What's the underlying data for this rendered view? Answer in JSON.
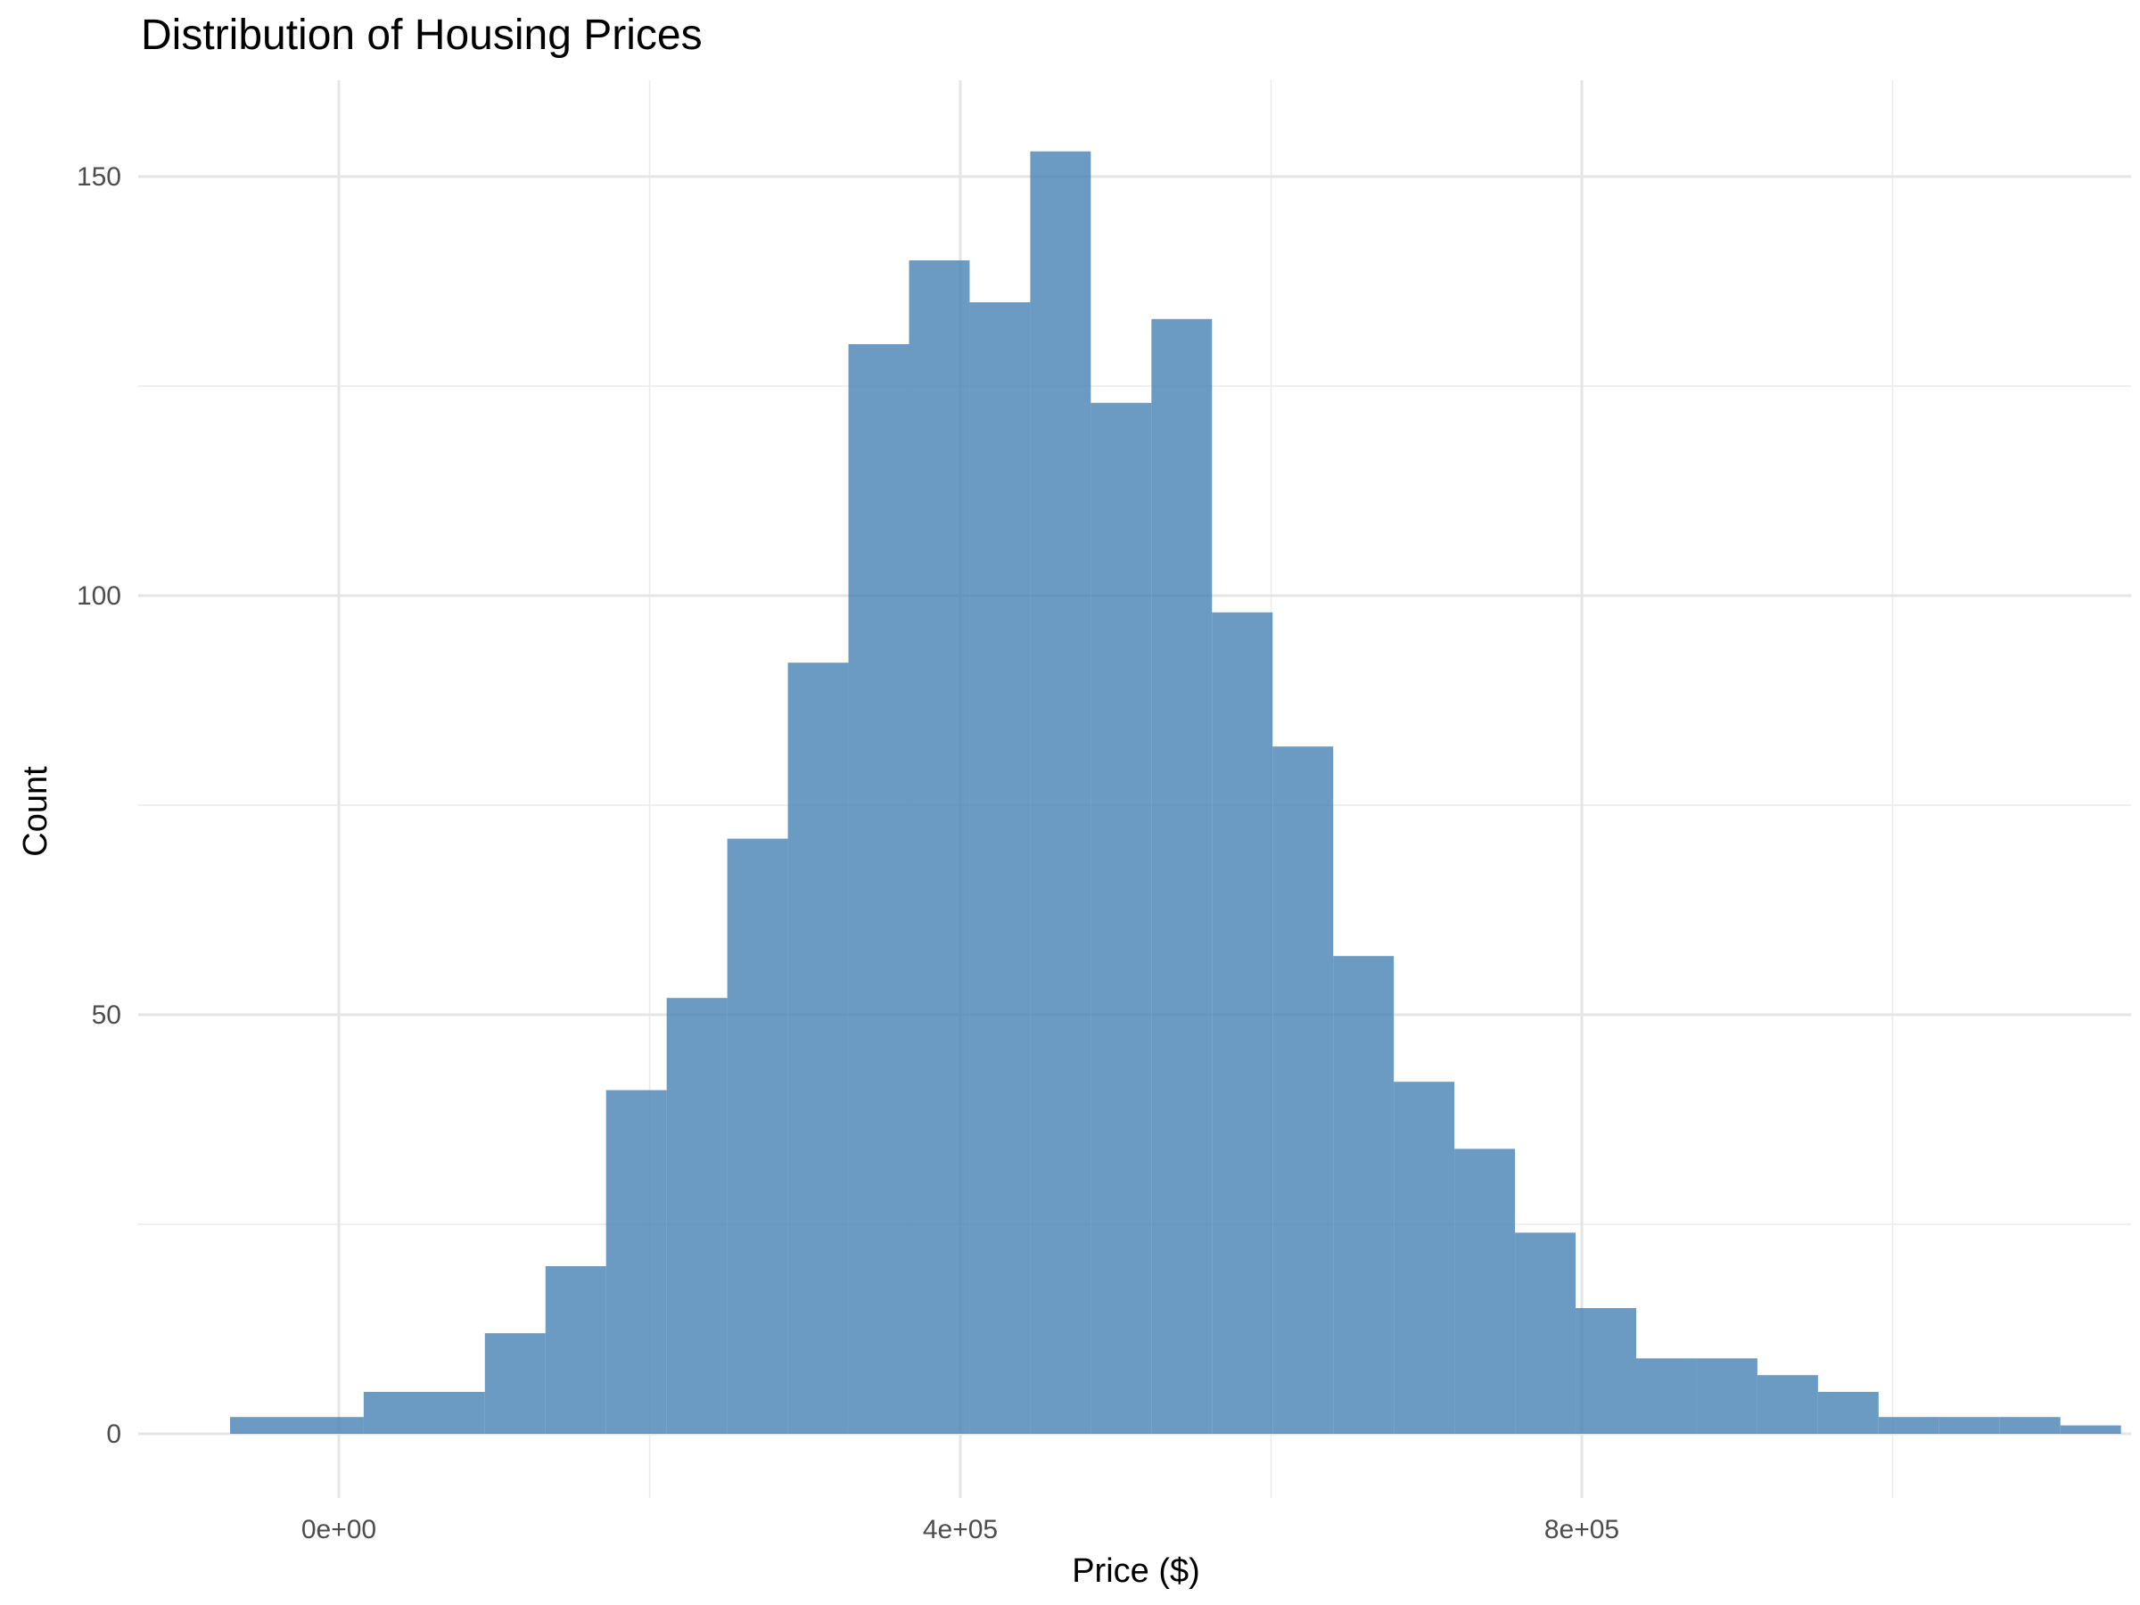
{
  "chart_data": {
    "type": "bar",
    "title": "Distribution of Housing Prices",
    "xlabel": "Price ($)",
    "ylabel": "Count",
    "bar_color": "#4682B4",
    "bar_opacity": 0.8,
    "grid": true,
    "xlim": [
      -90000,
      1150000
    ],
    "ylim": [
      -4,
      160
    ],
    "x_ticks": [
      {
        "value": 0,
        "label": "0e+00"
      },
      {
        "value": 400000,
        "label": "4e+05"
      },
      {
        "value": 800000,
        "label": "8e+05"
      }
    ],
    "x_minor": [
      200000,
      600000,
      1000000
    ],
    "y_ticks": [
      {
        "value": 0,
        "label": "0"
      },
      {
        "value": 50,
        "label": "50"
      },
      {
        "value": 100,
        "label": "100"
      },
      {
        "value": 150,
        "label": "150"
      }
    ],
    "y_minor": [
      25,
      75,
      125
    ],
    "bins": [
      {
        "x0": -70000,
        "x1": 0,
        "count": 2
      },
      {
        "x0": 0,
        "x1": 16000,
        "count": 2
      },
      {
        "x0": 16000,
        "x1": 94000,
        "count": 5
      },
      {
        "x0": 94000,
        "x1": 133000,
        "count": 12
      },
      {
        "x0": 133000,
        "x1": 172000,
        "count": 20
      },
      {
        "x0": 172000,
        "x1": 211000,
        "count": 41
      },
      {
        "x0": 211000,
        "x1": 250000,
        "count": 52
      },
      {
        "x0": 250000,
        "x1": 289000,
        "count": 71
      },
      {
        "x0": 289000,
        "x1": 328000,
        "count": 92
      },
      {
        "x0": 328000,
        "x1": 367000,
        "count": 130
      },
      {
        "x0": 367000,
        "x1": 406000,
        "count": 140
      },
      {
        "x0": 406000,
        "x1": 445000,
        "count": 135
      },
      {
        "x0": 445000,
        "x1": 484000,
        "count": 153
      },
      {
        "x0": 484000,
        "x1": 523000,
        "count": 123
      },
      {
        "x0": 523000,
        "x1": 562000,
        "count": 133
      },
      {
        "x0": 562000,
        "x1": 601000,
        "count": 98
      },
      {
        "x0": 601000,
        "x1": 640000,
        "count": 82
      },
      {
        "x0": 640000,
        "x1": 679000,
        "count": 57
      },
      {
        "x0": 679000,
        "x1": 718000,
        "count": 42
      },
      {
        "x0": 718000,
        "x1": 757000,
        "count": 34
      },
      {
        "x0": 757000,
        "x1": 796000,
        "count": 24
      },
      {
        "x0": 796000,
        "x1": 835000,
        "count": 15
      },
      {
        "x0": 835000,
        "x1": 874000,
        "count": 9
      },
      {
        "x0": 874000,
        "x1": 913000,
        "count": 9
      },
      {
        "x0": 913000,
        "x1": 952000,
        "count": 7
      },
      {
        "x0": 952000,
        "x1": 991000,
        "count": 5
      },
      {
        "x0": 991000,
        "x1": 1030000,
        "count": 2
      },
      {
        "x0": 1030000,
        "x1": 1069000,
        "count": 2
      },
      {
        "x0": 1069000,
        "x1": 1108000,
        "count": 2
      },
      {
        "x0": 1108000,
        "x1": 1108000,
        "count": 2
      },
      {
        "x0": 1108000,
        "x1": 1147000,
        "count": 1
      }
    ]
  }
}
